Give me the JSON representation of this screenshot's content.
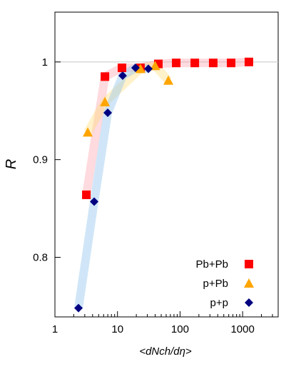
{
  "chart_data": {
    "type": "scatter",
    "xlabel": "<dNch/dη>",
    "ylabel": "R",
    "xscale": "log",
    "xlim": [
      1,
      3700
    ],
    "ylim": [
      0.739,
      1.051
    ],
    "xticks": [
      1,
      10,
      100,
      1000
    ],
    "yticks": [
      0.8,
      0.9,
      1
    ],
    "hline": 1,
    "legend": "lower right",
    "series": [
      {
        "name": "Pb+Pb",
        "color": "#ff0000",
        "marker": "square",
        "x": [
          3.18,
          6.3,
          11.8,
          23.3,
          45,
          86.8,
          172,
          339,
          655,
          1260
        ],
        "values": [
          0.864,
          0.985,
          0.994,
          0.994,
          0.998,
          0.999,
          0.999,
          0.999,
          0.999,
          1.0
        ]
      },
      {
        "name": "p+Pb",
        "color": "#ffa500",
        "marker": "triangle",
        "x": [
          3.35,
          6.3,
          23.3,
          40,
          65
        ],
        "values": [
          0.928,
          0.959,
          0.993,
          0.996,
          0.981
        ]
      },
      {
        "name": "p+p",
        "color": "#000080",
        "marker": "diamond",
        "x": [
          2.38,
          4.24,
          6.98,
          12.1,
          19.4,
          31.2
        ],
        "values": [
          0.748,
          0.857,
          0.948,
          0.986,
          0.994,
          0.993
        ]
      }
    ]
  }
}
